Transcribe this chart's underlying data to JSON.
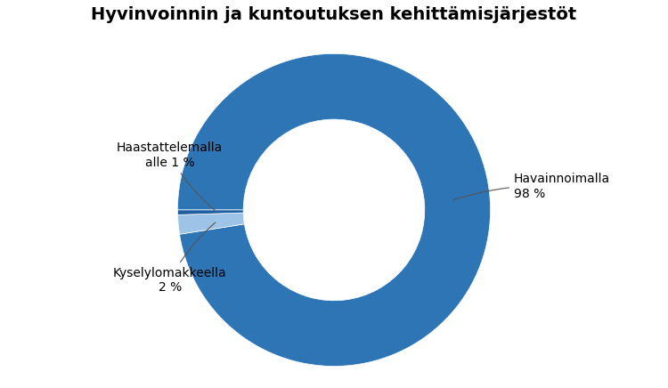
{
  "title": "Hyvinvoinnin ja kuntoutuksen kehittämisjärjestöt",
  "slices": [
    {
      "label": "Havainnoimalla\n98 %",
      "value": 98,
      "color": "#2E75B6"
    },
    {
      "label": "Kyselylomakkeella\n2 %",
      "value": 2,
      "color": "#9DC3E6"
    },
    {
      "label": "Haastattelemalla\nalle 1 %",
      "value": 0.5,
      "color": "#2060A0"
    }
  ],
  "background_color": "#ffffff",
  "title_fontsize": 14,
  "label_fontsize": 10,
  "donut_width": 0.42,
  "startangle": 180
}
